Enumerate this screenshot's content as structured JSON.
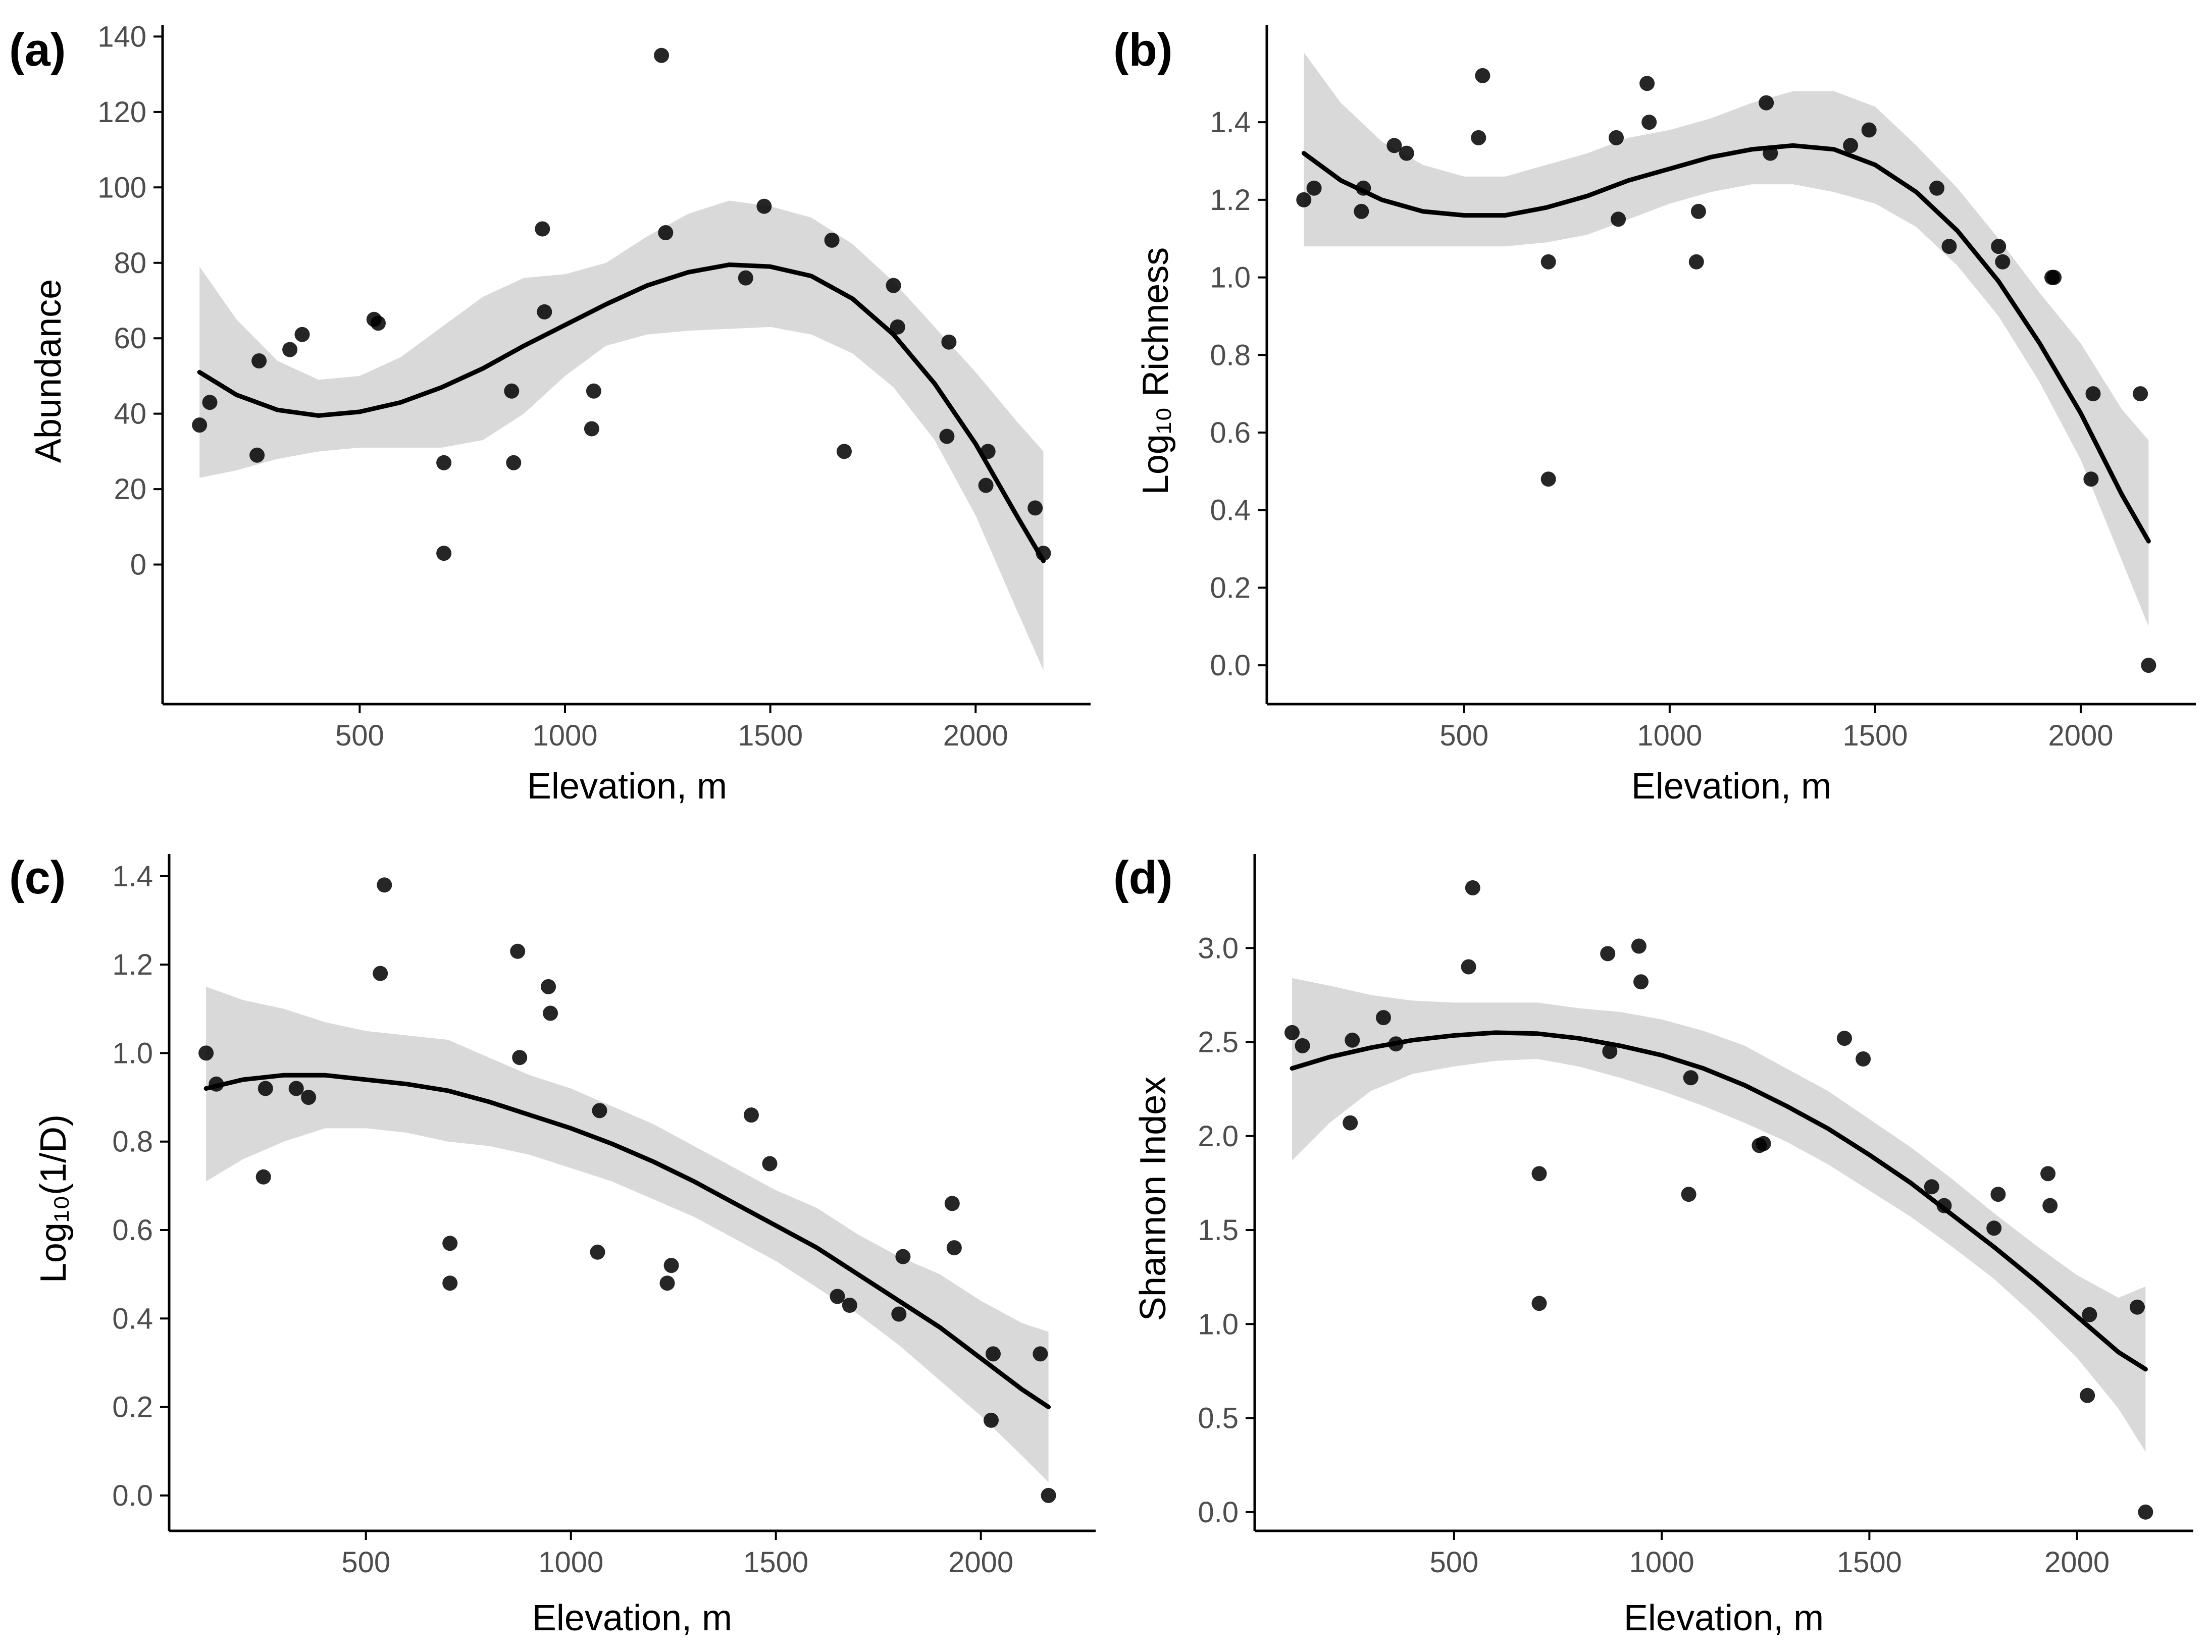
{
  "figure": {
    "background": "#ffffff",
    "point_color": "#000000",
    "curve_color": "#000000",
    "band_color": "#d9d9d9",
    "axis_color": "#000000",
    "tick_label_color": "#4d4d4d"
  },
  "chart_data": [
    {
      "id": "a",
      "type": "scatter",
      "panel_label": "(a)",
      "xlabel": "Elevation, m",
      "ylabel": "Abundance",
      "xlim": [
        20,
        2280
      ],
      "ylim": [
        -37,
        143
      ],
      "xticks": [
        500,
        1000,
        1500,
        2000
      ],
      "xtick_labels": [
        "500",
        "1000",
        "1500",
        "2000"
      ],
      "yticks": [
        0,
        20,
        40,
        60,
        80,
        100,
        120,
        140
      ],
      "ytick_labels": [
        "0",
        "20",
        "40",
        "60",
        "80",
        "100",
        "120",
        "140"
      ],
      "points": {
        "x": [
          110,
          135,
          250,
          255,
          330,
          360,
          535,
          545,
          705,
          705,
          870,
          875,
          945,
          950,
          1065,
          1070,
          1235,
          1245,
          1440,
          1485,
          1650,
          1680,
          1800,
          1810,
          1930,
          1935,
          2025,
          2030,
          2145,
          2165
        ],
        "y": [
          37,
          43,
          29,
          54,
          57,
          61,
          65,
          64,
          27,
          3,
          46,
          27,
          89,
          67,
          36,
          46,
          135,
          88,
          76,
          95,
          86,
          30,
          74,
          63,
          34,
          59,
          21,
          30,
          15,
          3
        ]
      },
      "fit": {
        "x": [
          110,
          200,
          300,
          400,
          500,
          600,
          700,
          800,
          900,
          1000,
          1100,
          1200,
          1300,
          1400,
          1500,
          1600,
          1700,
          1800,
          1900,
          2000,
          2100,
          2165
        ],
        "y": [
          51,
          45,
          41,
          39.5,
          40.5,
          43,
          47,
          52,
          58,
          63.5,
          69,
          74,
          77.5,
          79.5,
          79,
          76.5,
          70.5,
          61,
          48,
          32,
          13,
          1
        ],
        "lower": [
          23,
          25,
          28,
          30,
          31,
          31,
          31,
          33,
          40,
          50,
          58,
          61,
          62,
          62.5,
          63,
          61,
          56,
          47,
          33,
          13,
          -12,
          -28
        ],
        "upper": [
          79,
          65,
          54,
          49,
          50,
          55,
          63,
          71,
          76,
          77,
          80,
          87,
          93,
          96.5,
          95,
          92,
          85,
          75,
          63,
          51,
          38,
          30
        ]
      }
    },
    {
      "id": "b",
      "type": "scatter",
      "panel_label": "(b)",
      "xlabel": "Elevation, m",
      "ylabel": "Log₁₀ Richness",
      "xlim": [
        20,
        2280
      ],
      "ylim": [
        -0.1,
        1.65
      ],
      "xticks": [
        500,
        1000,
        1500,
        2000
      ],
      "xtick_labels": [
        "500",
        "1000",
        "1500",
        "2000"
      ],
      "yticks": [
        0,
        0.2,
        0.4,
        0.6,
        0.8,
        1.0,
        1.2,
        1.4
      ],
      "ytick_labels": [
        "0.0",
        "0.2",
        "0.4",
        "0.6",
        "0.8",
        "1.0",
        "1.2",
        "1.4"
      ],
      "points": {
        "x": [
          110,
          135,
          250,
          255,
          330,
          360,
          535,
          545,
          705,
          705,
          870,
          875,
          945,
          950,
          1065,
          1070,
          1235,
          1245,
          1440,
          1485,
          1650,
          1680,
          1800,
          1810,
          1930,
          1935,
          2025,
          2030,
          2145,
          2165
        ],
        "y": [
          1.2,
          1.23,
          1.17,
          1.23,
          1.34,
          1.32,
          1.36,
          1.52,
          0.48,
          1.04,
          1.36,
          1.15,
          1.5,
          1.4,
          1.04,
          1.17,
          1.45,
          1.32,
          1.34,
          1.38,
          1.23,
          1.08,
          1.08,
          1.04,
          1.0,
          1.0,
          0.48,
          0.7,
          0.7,
          0.0
        ]
      },
      "fit": {
        "x": [
          110,
          200,
          300,
          400,
          500,
          600,
          700,
          800,
          900,
          1000,
          1100,
          1200,
          1300,
          1400,
          1500,
          1600,
          1700,
          1800,
          1900,
          2000,
          2100,
          2165
        ],
        "y": [
          1.32,
          1.25,
          1.2,
          1.17,
          1.16,
          1.16,
          1.18,
          1.21,
          1.25,
          1.28,
          1.31,
          1.33,
          1.34,
          1.33,
          1.29,
          1.22,
          1.12,
          0.99,
          0.83,
          0.65,
          0.44,
          0.32
        ],
        "lower": [
          1.08,
          1.08,
          1.08,
          1.08,
          1.08,
          1.08,
          1.09,
          1.11,
          1.15,
          1.19,
          1.22,
          1.24,
          1.24,
          1.22,
          1.19,
          1.13,
          1.03,
          0.9,
          0.73,
          0.53,
          0.27,
          0.1
        ],
        "upper": [
          1.58,
          1.45,
          1.35,
          1.29,
          1.26,
          1.26,
          1.29,
          1.32,
          1.36,
          1.38,
          1.41,
          1.45,
          1.48,
          1.48,
          1.44,
          1.34,
          1.23,
          1.1,
          0.96,
          0.83,
          0.66,
          0.58
        ]
      }
    },
    {
      "id": "c",
      "type": "scatter",
      "panel_label": "(c)",
      "xlabel": "Elevation, m",
      "ylabel": "Log₁₀(1/D)",
      "xlim": [
        20,
        2280
      ],
      "ylim": [
        -0.08,
        1.45
      ],
      "xticks": [
        500,
        1000,
        1500,
        2000
      ],
      "xtick_labels": [
        "500",
        "1000",
        "1500",
        "2000"
      ],
      "yticks": [
        0,
        0.2,
        0.4,
        0.6,
        0.8,
        1.0,
        1.2,
        1.4
      ],
      "ytick_labels": [
        "0.0",
        "0.2",
        "0.4",
        "0.6",
        "0.8",
        "1.0",
        "1.2",
        "1.4"
      ],
      "points": {
        "x": [
          110,
          135,
          250,
          255,
          330,
          360,
          535,
          545,
          705,
          705,
          870,
          875,
          945,
          950,
          1065,
          1070,
          1235,
          1245,
          1440,
          1485,
          1650,
          1680,
          1800,
          1810,
          1930,
          1935,
          2025,
          2030,
          2145,
          2165
        ],
        "y": [
          1.0,
          0.93,
          0.72,
          0.92,
          0.92,
          0.9,
          1.18,
          1.38,
          0.57,
          0.48,
          1.23,
          0.99,
          1.15,
          1.09,
          0.55,
          0.87,
          0.48,
          0.52,
          0.86,
          0.75,
          0.45,
          0.43,
          0.41,
          0.54,
          0.66,
          0.56,
          0.17,
          0.32,
          0.32,
          0.0
        ]
      },
      "fit": {
        "x": [
          110,
          200,
          300,
          400,
          500,
          600,
          700,
          800,
          900,
          1000,
          1100,
          1200,
          1300,
          1400,
          1500,
          1600,
          1700,
          1800,
          1900,
          2000,
          2100,
          2165
        ],
        "y": [
          0.92,
          0.94,
          0.95,
          0.95,
          0.94,
          0.93,
          0.915,
          0.89,
          0.86,
          0.83,
          0.795,
          0.755,
          0.71,
          0.66,
          0.61,
          0.56,
          0.5,
          0.44,
          0.38,
          0.31,
          0.24,
          0.2
        ],
        "lower": [
          0.71,
          0.76,
          0.8,
          0.83,
          0.83,
          0.82,
          0.8,
          0.79,
          0.77,
          0.74,
          0.71,
          0.67,
          0.63,
          0.58,
          0.53,
          0.47,
          0.41,
          0.34,
          0.26,
          0.18,
          0.09,
          0.03
        ],
        "upper": [
          1.15,
          1.12,
          1.1,
          1.07,
          1.05,
          1.04,
          1.03,
          0.99,
          0.95,
          0.92,
          0.88,
          0.84,
          0.79,
          0.74,
          0.69,
          0.65,
          0.59,
          0.54,
          0.5,
          0.44,
          0.39,
          0.37
        ]
      }
    },
    {
      "id": "d",
      "type": "scatter",
      "panel_label": "(d)",
      "xlabel": "Elevation, m",
      "ylabel": "Shannon Index",
      "xlim": [
        20,
        2280
      ],
      "ylim": [
        -0.1,
        3.5
      ],
      "xticks": [
        500,
        1000,
        1500,
        2000
      ],
      "xtick_labels": [
        "500",
        "1000",
        "1500",
        "2000"
      ],
      "yticks": [
        0,
        0.5,
        1.0,
        1.5,
        2.0,
        2.5,
        3.0
      ],
      "ytick_labels": [
        "0.0",
        "0.5",
        "1.0",
        "1.5",
        "2.0",
        "2.5",
        "3.0"
      ],
      "points": {
        "x": [
          110,
          135,
          250,
          255,
          330,
          360,
          535,
          545,
          705,
          705,
          870,
          875,
          945,
          950,
          1065,
          1070,
          1235,
          1245,
          1440,
          1485,
          1650,
          1680,
          1800,
          1810,
          1930,
          1935,
          2025,
          2030,
          2145,
          2165
        ],
        "y": [
          2.55,
          2.48,
          2.07,
          2.51,
          2.63,
          2.49,
          2.9,
          3.32,
          1.8,
          1.11,
          2.97,
          2.45,
          3.01,
          2.82,
          1.69,
          2.31,
          1.95,
          1.96,
          2.52,
          2.41,
          1.73,
          1.63,
          1.51,
          1.69,
          1.8,
          1.63,
          0.62,
          1.05,
          1.09,
          0.0
        ]
      },
      "fit": {
        "x": [
          110,
          200,
          300,
          400,
          500,
          600,
          700,
          800,
          900,
          1000,
          1100,
          1200,
          1300,
          1400,
          1500,
          1600,
          1700,
          1800,
          1900,
          2000,
          2100,
          2165
        ],
        "y": [
          2.36,
          2.42,
          2.47,
          2.51,
          2.535,
          2.55,
          2.545,
          2.52,
          2.48,
          2.43,
          2.36,
          2.27,
          2.16,
          2.04,
          1.9,
          1.75,
          1.58,
          1.41,
          1.23,
          1.04,
          0.85,
          0.76
        ],
        "lower": [
          1.87,
          2.07,
          2.24,
          2.33,
          2.37,
          2.4,
          2.41,
          2.37,
          2.31,
          2.24,
          2.16,
          2.07,
          1.97,
          1.85,
          1.71,
          1.57,
          1.41,
          1.24,
          1.04,
          0.82,
          0.55,
          0.32
        ],
        "upper": [
          2.84,
          2.8,
          2.75,
          2.72,
          2.71,
          2.71,
          2.71,
          2.68,
          2.66,
          2.62,
          2.56,
          2.48,
          2.36,
          2.24,
          2.09,
          1.94,
          1.77,
          1.59,
          1.42,
          1.26,
          1.14,
          1.2
        ]
      }
    }
  ]
}
